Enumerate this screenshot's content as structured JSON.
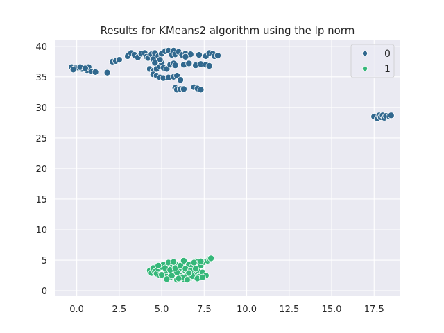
{
  "chart_data": {
    "type": "scatter",
    "title": "Results for KMeans2 algorithm using the lp norm",
    "xlabel": "",
    "ylabel": "",
    "xlim": [
      -1.25,
      19.0
    ],
    "ylim": [
      -0.9,
      41.0
    ],
    "xticks": [
      0.0,
      2.5,
      5.0,
      7.5,
      10.0,
      12.5,
      15.0,
      17.5
    ],
    "xtick_labels": [
      "0.0",
      "2.5",
      "5.0",
      "7.5",
      "10.0",
      "12.5",
      "15.0",
      "17.5"
    ],
    "yticks": [
      0,
      5,
      10,
      15,
      20,
      25,
      30,
      35,
      40
    ],
    "ytick_labels": [
      "0",
      "5",
      "10",
      "15",
      "20",
      "25",
      "30",
      "35",
      "40"
    ],
    "grid": true,
    "legend_position": "top-right",
    "colors": {
      "background": "#eaeaf2",
      "grid": "#ffffff",
      "marker_edge": "#ffffff"
    },
    "series": [
      {
        "name": "0",
        "color": "#31688e",
        "points": [
          [
            -0.3,
            36.6
          ],
          [
            -0.1,
            36.4
          ],
          [
            0.1,
            36.5
          ],
          [
            0.3,
            36.3
          ],
          [
            -0.2,
            36.2
          ],
          [
            0.2,
            36.6
          ],
          [
            0.6,
            36.1
          ],
          [
            0.7,
            36.6
          ],
          [
            0.9,
            35.9
          ],
          [
            1.1,
            35.8
          ],
          [
            0.5,
            36.4
          ],
          [
            1.8,
            35.7
          ],
          [
            2.1,
            37.5
          ],
          [
            2.3,
            37.6
          ],
          [
            2.5,
            37.8
          ],
          [
            3.0,
            38.4
          ],
          [
            3.2,
            38.9
          ],
          [
            3.4,
            38.6
          ],
          [
            3.6,
            38.2
          ],
          [
            3.8,
            38.8
          ],
          [
            4.0,
            38.9
          ],
          [
            4.1,
            38.3
          ],
          [
            4.2,
            38.1
          ],
          [
            4.4,
            38.7
          ],
          [
            4.5,
            37.9
          ],
          [
            4.6,
            38.9
          ],
          [
            4.8,
            38.4
          ],
          [
            5.0,
            38.8
          ],
          [
            5.2,
            39.2
          ],
          [
            5.4,
            39.3
          ],
          [
            5.6,
            38.6
          ],
          [
            5.7,
            39.3
          ],
          [
            5.8,
            38.7
          ],
          [
            6.0,
            39.1
          ],
          [
            6.2,
            38.6
          ],
          [
            6.4,
            38.8
          ],
          [
            6.7,
            38.7
          ],
          [
            7.2,
            38.6
          ],
          [
            7.6,
            38.4
          ],
          [
            7.8,
            38.9
          ],
          [
            8.0,
            38.8
          ],
          [
            8.1,
            38.4
          ],
          [
            8.3,
            38.5
          ],
          [
            4.3,
            36.3
          ],
          [
            4.5,
            36.0
          ],
          [
            4.7,
            36.3
          ],
          [
            4.9,
            36.7
          ],
          [
            5.0,
            37.3
          ],
          [
            5.1,
            36.5
          ],
          [
            5.3,
            36.3
          ],
          [
            5.5,
            37.0
          ],
          [
            5.7,
            37.2
          ],
          [
            4.5,
            35.4
          ],
          [
            4.7,
            35.2
          ],
          [
            4.9,
            34.9
          ],
          [
            5.1,
            34.8
          ],
          [
            5.4,
            34.9
          ],
          [
            5.7,
            35.0
          ],
          [
            5.9,
            35.2
          ],
          [
            6.1,
            34.5
          ],
          [
            5.8,
            36.9
          ],
          [
            6.3,
            37.0
          ],
          [
            6.6,
            37.2
          ],
          [
            7.0,
            36.9
          ],
          [
            7.3,
            37.1
          ],
          [
            7.6,
            37.0
          ],
          [
            7.8,
            36.8
          ],
          [
            5.8,
            33.2
          ],
          [
            5.9,
            32.9
          ],
          [
            6.1,
            33.0
          ],
          [
            6.3,
            33.0
          ],
          [
            6.9,
            33.3
          ],
          [
            7.1,
            33.1
          ],
          [
            7.3,
            32.9
          ],
          [
            4.9,
            37.8
          ],
          [
            4.6,
            37.3
          ],
          [
            6.4,
            38.3
          ],
          [
            17.5,
            28.5
          ],
          [
            17.7,
            28.2
          ],
          [
            17.8,
            28.7
          ],
          [
            17.9,
            28.4
          ],
          [
            18.0,
            28.7
          ],
          [
            18.1,
            28.3
          ],
          [
            18.2,
            28.6
          ],
          [
            18.4,
            28.5
          ],
          [
            18.5,
            28.7
          ]
        ]
      },
      {
        "name": "1",
        "color": "#35b779",
        "points": [
          [
            4.3,
            3.3
          ],
          [
            4.4,
            2.9
          ],
          [
            4.5,
            3.7
          ],
          [
            4.6,
            3.1
          ],
          [
            4.7,
            2.8
          ],
          [
            4.8,
            3.6
          ],
          [
            4.9,
            2.5
          ],
          [
            5.0,
            3.9
          ],
          [
            5.1,
            4.3
          ],
          [
            5.2,
            2.7
          ],
          [
            5.3,
            3.3
          ],
          [
            5.4,
            4.6
          ],
          [
            5.5,
            2.2
          ],
          [
            5.6,
            3.8
          ],
          [
            5.7,
            2.9
          ],
          [
            5.8,
            4.4
          ],
          [
            5.9,
            1.8
          ],
          [
            6.0,
            3.5
          ],
          [
            6.1,
            2.4
          ],
          [
            6.2,
            4.6
          ],
          [
            6.3,
            1.9
          ],
          [
            6.4,
            3.2
          ],
          [
            6.5,
            2.6
          ],
          [
            6.6,
            4.3
          ],
          [
            6.7,
            2.1
          ],
          [
            6.8,
            3.9
          ],
          [
            6.9,
            2.8
          ],
          [
            7.0,
            4.8
          ],
          [
            7.1,
            3.4
          ],
          [
            7.2,
            2.3
          ],
          [
            7.3,
            4.1
          ],
          [
            7.4,
            3.0
          ],
          [
            7.5,
            4.7
          ],
          [
            7.6,
            2.5
          ],
          [
            7.7,
            4.9
          ],
          [
            7.8,
            5.2
          ],
          [
            7.9,
            5.3
          ],
          [
            5.0,
            2.6
          ],
          [
            5.3,
            1.9
          ],
          [
            5.6,
            2.5
          ],
          [
            5.9,
            3.0
          ],
          [
            6.2,
            2.2
          ],
          [
            6.5,
            1.8
          ],
          [
            6.8,
            2.4
          ],
          [
            7.1,
            2.0
          ],
          [
            7.4,
            2.2
          ],
          [
            5.2,
            3.7
          ],
          [
            5.5,
            3.4
          ],
          [
            5.8,
            3.7
          ],
          [
            6.1,
            4.1
          ],
          [
            6.4,
            3.6
          ],
          [
            6.7,
            3.3
          ],
          [
            7.0,
            3.6
          ],
          [
            5.7,
            4.7
          ],
          [
            6.3,
            4.9
          ],
          [
            6.9,
            4.6
          ],
          [
            7.3,
            4.8
          ],
          [
            4.8,
            4.1
          ],
          [
            6.0,
            2.0
          ],
          [
            6.6,
            2.9
          ]
        ]
      }
    ]
  }
}
